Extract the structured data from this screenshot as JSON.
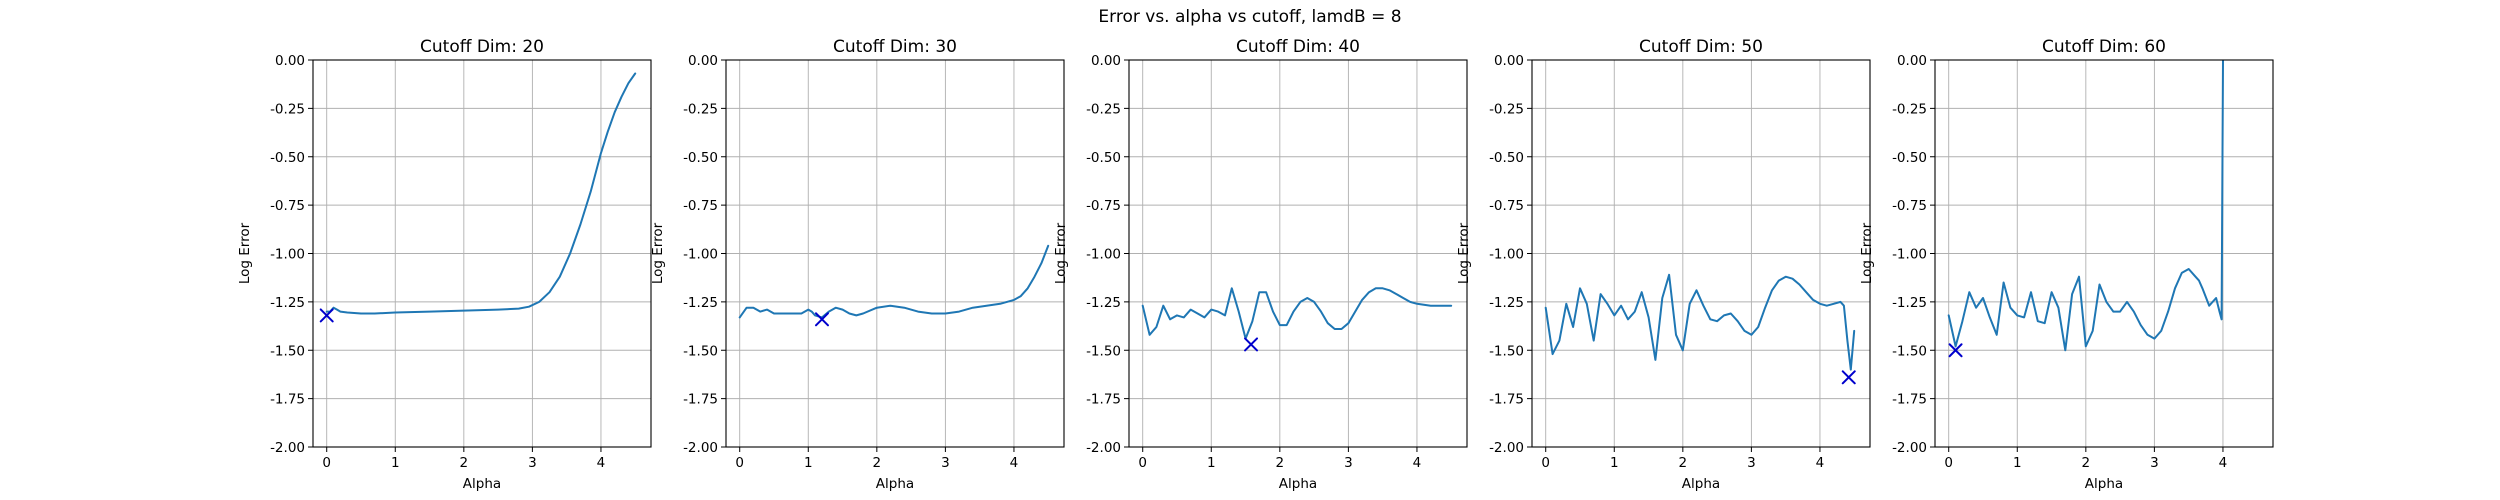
{
  "figure_title": "Error vs. alpha vs cutoff, lamdB = 8",
  "colors": {
    "line": "#1f77b4",
    "marker": "#0000cc",
    "grid": "#b0b0b0"
  },
  "chart_data": [
    {
      "type": "line",
      "title": "Cutoff Dim: 20",
      "xlabel": "Alpha",
      "ylabel": "Log Error",
      "xlim": [
        -0.2,
        4.73
      ],
      "ylim": [
        -2.0,
        0.0
      ],
      "xticks": [
        "0",
        "1",
        "2",
        "3",
        "4"
      ],
      "yticks": [
        "-2.00",
        "-1.75",
        "-1.50",
        "-1.25",
        "-1.00",
        "-0.75",
        "-0.50",
        "-0.25",
        "0.00"
      ],
      "grid": true,
      "series": [
        {
          "x": [
            0,
            0.05,
            0.1,
            0.15,
            0.2,
            0.3,
            0.5,
            0.7,
            1.0,
            1.5,
            2.0,
            2.5,
            2.8,
            2.95,
            3.1,
            3.25,
            3.4,
            3.55,
            3.7,
            3.85,
            4.0,
            4.1,
            4.2,
            4.3,
            4.4,
            4.5
          ],
          "y": [
            -1.3,
            -1.3,
            -1.28,
            -1.29,
            -1.3,
            -1.305,
            -1.31,
            -1.31,
            -1.305,
            -1.3,
            -1.295,
            -1.29,
            -1.285,
            -1.275,
            -1.25,
            -1.2,
            -1.12,
            -1.0,
            -0.85,
            -0.68,
            -0.48,
            -0.37,
            -0.27,
            -0.19,
            -0.12,
            -0.07
          ]
        }
      ],
      "marker": {
        "x": 0.0,
        "y": -1.32,
        "symbol": "x"
      }
    },
    {
      "type": "line",
      "title": "Cutoff Dim: 30",
      "xlabel": "Alpha",
      "ylabel": "Log Error",
      "xlim": [
        -0.2,
        4.73
      ],
      "ylim": [
        -2.0,
        0.0
      ],
      "xticks": [
        "0",
        "1",
        "2",
        "3",
        "4"
      ],
      "yticks": [
        "-2.00",
        "-1.75",
        "-1.50",
        "-1.25",
        "-1.00",
        "-0.75",
        "-0.50",
        "-0.25",
        "0.00"
      ],
      "grid": true,
      "series": [
        {
          "x": [
            0,
            0.1,
            0.2,
            0.3,
            0.4,
            0.5,
            0.6,
            0.7,
            0.8,
            0.9,
            1.0,
            1.05,
            1.1,
            1.2,
            1.3,
            1.4,
            1.5,
            1.6,
            1.7,
            1.8,
            2.0,
            2.2,
            2.4,
            2.6,
            2.8,
            3.0,
            3.2,
            3.4,
            3.6,
            3.8,
            4.0,
            4.1,
            4.2,
            4.3,
            4.4,
            4.5
          ],
          "y": [
            -1.33,
            -1.28,
            -1.28,
            -1.3,
            -1.29,
            -1.31,
            -1.31,
            -1.31,
            -1.31,
            -1.31,
            -1.29,
            -1.3,
            -1.32,
            -1.33,
            -1.3,
            -1.28,
            -1.29,
            -1.31,
            -1.32,
            -1.31,
            -1.28,
            -1.27,
            -1.28,
            -1.3,
            -1.31,
            -1.31,
            -1.3,
            -1.28,
            -1.27,
            -1.26,
            -1.24,
            -1.22,
            -1.18,
            -1.12,
            -1.05,
            -0.96
          ]
        }
      ],
      "marker": {
        "x": 1.2,
        "y": -1.34,
        "symbol": "x"
      }
    },
    {
      "type": "line",
      "title": "Cutoff Dim: 40",
      "xlabel": "Alpha",
      "ylabel": "Log Error",
      "xlim": [
        -0.2,
        4.73
      ],
      "ylim": [
        -2.0,
        0.0
      ],
      "xticks": [
        "0",
        "1",
        "2",
        "3",
        "4"
      ],
      "yticks": [
        "-2.00",
        "-1.75",
        "-1.50",
        "-1.25",
        "-1.00",
        "-0.75",
        "-0.50",
        "-0.25",
        "0.00"
      ],
      "grid": true,
      "series": [
        {
          "x": [
            0,
            0.1,
            0.2,
            0.3,
            0.4,
            0.5,
            0.6,
            0.7,
            0.8,
            0.9,
            1.0,
            1.1,
            1.2,
            1.3,
            1.4,
            1.5,
            1.6,
            1.7,
            1.8,
            1.9,
            2.0,
            2.1,
            2.2,
            2.3,
            2.4,
            2.5,
            2.6,
            2.7,
            2.8,
            2.9,
            3.0,
            3.1,
            3.2,
            3.3,
            3.4,
            3.5,
            3.6,
            3.7,
            3.8,
            3.9,
            4.0,
            4.1,
            4.2,
            4.3,
            4.4,
            4.5
          ],
          "y": [
            -1.27,
            -1.42,
            -1.38,
            -1.27,
            -1.34,
            -1.32,
            -1.33,
            -1.29,
            -1.31,
            -1.33,
            -1.29,
            -1.3,
            -1.32,
            -1.18,
            -1.3,
            -1.44,
            -1.35,
            -1.2,
            -1.2,
            -1.3,
            -1.37,
            -1.37,
            -1.3,
            -1.25,
            -1.23,
            -1.25,
            -1.3,
            -1.36,
            -1.39,
            -1.39,
            -1.36,
            -1.3,
            -1.24,
            -1.2,
            -1.18,
            -1.18,
            -1.19,
            -1.21,
            -1.23,
            -1.25,
            -1.26,
            -1.265,
            -1.27,
            -1.27,
            -1.27,
            -1.27
          ]
        }
      ],
      "marker": {
        "x": 1.58,
        "y": -1.47,
        "symbol": "x"
      }
    },
    {
      "type": "line",
      "title": "Cutoff Dim: 50",
      "xlabel": "Alpha",
      "ylabel": "Log Error",
      "xlim": [
        -0.2,
        4.73
      ],
      "ylim": [
        -2.0,
        0.0
      ],
      "xticks": [
        "0",
        "1",
        "2",
        "3",
        "4"
      ],
      "yticks": [
        "-2.00",
        "-1.75",
        "-1.50",
        "-1.25",
        "-1.00",
        "-0.75",
        "-0.50",
        "-0.25",
        "0.00"
      ],
      "grid": true,
      "series": [
        {
          "x": [
            0,
            0.1,
            0.2,
            0.3,
            0.4,
            0.5,
            0.6,
            0.7,
            0.8,
            0.9,
            1.0,
            1.1,
            1.2,
            1.3,
            1.4,
            1.5,
            1.6,
            1.7,
            1.8,
            1.9,
            2.0,
            2.1,
            2.2,
            2.3,
            2.4,
            2.5,
            2.6,
            2.7,
            2.8,
            2.9,
            3.0,
            3.1,
            3.2,
            3.3,
            3.4,
            3.5,
            3.6,
            3.7,
            3.8,
            3.9,
            4.0,
            4.1,
            4.2,
            4.3,
            4.35,
            4.4,
            4.45,
            4.5
          ],
          "y": [
            -1.28,
            -1.52,
            -1.45,
            -1.26,
            -1.38,
            -1.18,
            -1.26,
            -1.45,
            -1.21,
            -1.26,
            -1.32,
            -1.27,
            -1.34,
            -1.3,
            -1.2,
            -1.33,
            -1.55,
            -1.23,
            -1.11,
            -1.42,
            -1.5,
            -1.26,
            -1.19,
            -1.27,
            -1.34,
            -1.35,
            -1.32,
            -1.31,
            -1.35,
            -1.4,
            -1.42,
            -1.38,
            -1.28,
            -1.19,
            -1.14,
            -1.12,
            -1.13,
            -1.16,
            -1.2,
            -1.24,
            -1.26,
            -1.27,
            -1.26,
            -1.25,
            -1.27,
            -1.45,
            -1.6,
            -1.4
          ]
        }
      ],
      "marker": {
        "x": 4.42,
        "y": -1.64,
        "symbol": "x"
      }
    },
    {
      "type": "line",
      "title": "Cutoff Dim: 60",
      "xlabel": "Alpha",
      "ylabel": "Log Error",
      "xlim": [
        -0.2,
        4.73
      ],
      "ylim": [
        -2.0,
        0.0
      ],
      "xticks": [
        "0",
        "1",
        "2",
        "3",
        "4"
      ],
      "yticks": [
        "-2.00",
        "-1.75",
        "-1.50",
        "-1.25",
        "-1.00",
        "-0.75",
        "-0.50",
        "-0.25",
        "0.00"
      ],
      "grid": true,
      "series": [
        {
          "x": [
            0,
            0.1,
            0.2,
            0.3,
            0.4,
            0.5,
            0.6,
            0.7,
            0.8,
            0.9,
            1.0,
            1.1,
            1.2,
            1.3,
            1.4,
            1.5,
            1.6,
            1.7,
            1.8,
            1.9,
            2.0,
            2.1,
            2.2,
            2.3,
            2.4,
            2.5,
            2.6,
            2.7,
            2.8,
            2.9,
            3.0,
            3.1,
            3.2,
            3.3,
            3.4,
            3.5,
            3.6,
            3.65,
            3.7,
            3.8,
            3.9,
            3.95,
            3.98,
            4.0
          ],
          "y": [
            -1.32,
            -1.48,
            -1.35,
            -1.2,
            -1.28,
            -1.23,
            -1.33,
            -1.42,
            -1.15,
            -1.28,
            -1.32,
            -1.33,
            -1.2,
            -1.35,
            -1.36,
            -1.2,
            -1.28,
            -1.5,
            -1.21,
            -1.12,
            -1.48,
            -1.4,
            -1.16,
            -1.25,
            -1.3,
            -1.3,
            -1.25,
            -1.3,
            -1.37,
            -1.42,
            -1.44,
            -1.4,
            -1.3,
            -1.18,
            -1.1,
            -1.08,
            -1.12,
            -1.14,
            -1.18,
            -1.27,
            -1.23,
            -1.3,
            -1.34,
            0.0
          ]
        }
      ],
      "marker": {
        "x": 0.1,
        "y": -1.5,
        "symbol": "x"
      }
    }
  ]
}
